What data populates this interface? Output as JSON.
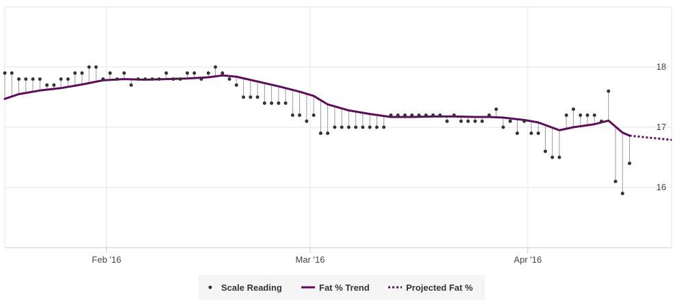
{
  "chart_data": {
    "type": "line",
    "title": "",
    "xlabel": "",
    "ylabel": "",
    "ylim": [
      15,
      19
    ],
    "x_range": [
      0,
      95
    ],
    "x_ticks": [
      {
        "x": 14.5,
        "label": "Feb '16"
      },
      {
        "x": 43.5,
        "label": "Mar '16"
      },
      {
        "x": 74.5,
        "label": "Apr '16"
      }
    ],
    "y_ticks": [
      {
        "y": 16,
        "label": "16"
      },
      {
        "y": 17,
        "label": "17"
      },
      {
        "y": 18,
        "label": "18"
      }
    ],
    "grid": true,
    "legend_position": "bottom-center",
    "series": [
      {
        "name": "Scale Reading",
        "kind": "scatter",
        "color": "#333333",
        "x": [
          0,
          1,
          2,
          3,
          4,
          5,
          6,
          7,
          8,
          9,
          10,
          11,
          12,
          13,
          14,
          15,
          16,
          17,
          18,
          19,
          20,
          21,
          22,
          23,
          24,
          25,
          26,
          27,
          28,
          29,
          30,
          31,
          32,
          33,
          34,
          35,
          36,
          37,
          38,
          39,
          40,
          41,
          42,
          43,
          44,
          45,
          46,
          47,
          48,
          49,
          50,
          51,
          52,
          53,
          54,
          55,
          56,
          57,
          58,
          59,
          60,
          61,
          62,
          63,
          64,
          65,
          66,
          67,
          68,
          69,
          70,
          71,
          72,
          73,
          74,
          75,
          76,
          77,
          78,
          79,
          80,
          81,
          82,
          83,
          84,
          85,
          86,
          87,
          88,
          89
        ],
        "values": [
          17.9,
          17.9,
          17.8,
          17.8,
          17.8,
          17.8,
          17.7,
          17.7,
          17.8,
          17.8,
          17.9,
          17.9,
          18.0,
          18.0,
          17.8,
          17.9,
          17.8,
          17.9,
          17.7,
          17.8,
          17.8,
          17.8,
          17.8,
          17.9,
          17.8,
          17.8,
          17.9,
          17.9,
          17.8,
          17.9,
          18.0,
          17.9,
          17.8,
          17.7,
          17.5,
          17.5,
          17.5,
          17.4,
          17.4,
          17.4,
          17.4,
          17.2,
          17.2,
          17.1,
          17.2,
          16.9,
          16.9,
          17.0,
          17.0,
          17.0,
          17.0,
          17.0,
          17.0,
          17.0,
          17.0,
          17.2,
          17.2,
          17.2,
          17.2,
          17.2,
          17.2,
          17.2,
          17.2,
          17.1,
          17.2,
          17.1,
          17.1,
          17.1,
          17.1,
          17.2,
          17.3,
          17.0,
          17.1,
          16.9,
          17.1,
          16.9,
          16.9,
          16.6,
          16.5,
          16.5,
          17.2,
          17.3,
          17.2,
          17.2,
          17.2,
          17.1,
          17.6,
          16.1,
          15.9,
          16.4
        ]
      },
      {
        "name": "Fat % Trend",
        "kind": "line",
        "color": "#5e0a5c",
        "x": [
          0,
          2,
          5,
          8,
          11,
          14,
          17,
          20,
          23,
          26,
          29,
          31,
          33,
          36,
          39,
          42,
          44,
          46,
          49,
          52,
          55,
          58,
          61,
          64,
          67,
          69,
          71,
          74,
          76,
          79,
          81,
          84,
          86,
          88,
          89
        ],
        "values": [
          17.47,
          17.55,
          17.61,
          17.65,
          17.71,
          17.78,
          17.8,
          17.79,
          17.8,
          17.81,
          17.83,
          17.86,
          17.84,
          17.76,
          17.68,
          17.59,
          17.52,
          17.38,
          17.28,
          17.22,
          17.17,
          17.17,
          17.18,
          17.18,
          17.17,
          17.17,
          17.16,
          17.12,
          17.08,
          16.95,
          17.0,
          17.05,
          17.11,
          16.91,
          16.86
        ]
      },
      {
        "name": "Projected Fat %",
        "kind": "line",
        "dashed": true,
        "color": "#5e0a5c",
        "x": [
          89,
          95
        ],
        "values": [
          16.86,
          16.79
        ]
      }
    ]
  }
}
